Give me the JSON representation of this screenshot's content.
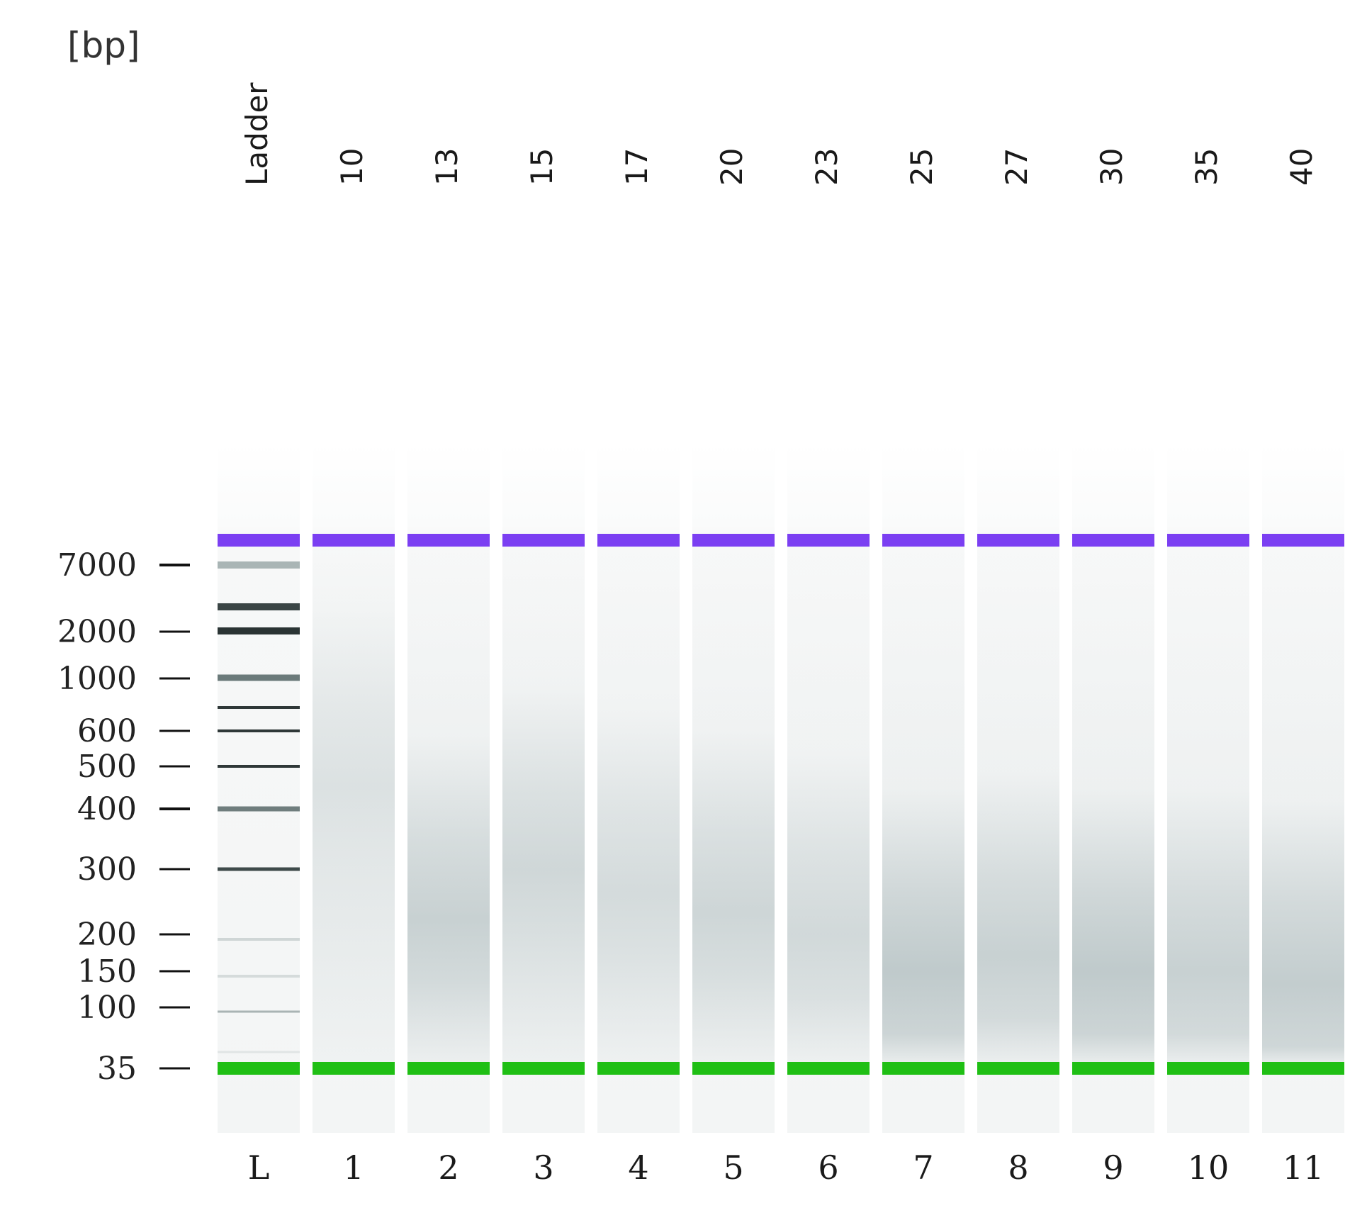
{
  "unit_label": "[bp]",
  "ladder_header": "Ladder",
  "marker_colors": {
    "upper": "#7b3ff2",
    "lower": "#1fbf14"
  },
  "size_markers": [
    "7000",
    "2000",
    "1000",
    "600",
    "500",
    "400",
    "300",
    "200",
    "150",
    "100",
    "35"
  ],
  "lanes": [
    {
      "number": "L",
      "header": "Ladder",
      "type": "ladder",
      "smear_peak_bp": null,
      "smear_intensity": 0
    },
    {
      "number": "1",
      "header": "10",
      "type": "sample",
      "smear_peak_bp": 450,
      "smear_intensity": 0.22
    },
    {
      "number": "2",
      "header": "13",
      "type": "sample",
      "smear_peak_bp": 220,
      "smear_intensity": 0.38
    },
    {
      "number": "3",
      "header": "15",
      "type": "sample",
      "smear_peak_bp": 300,
      "smear_intensity": 0.32
    },
    {
      "number": "4",
      "header": "17",
      "type": "sample",
      "smear_peak_bp": 260,
      "smear_intensity": 0.28
    },
    {
      "number": "5",
      "header": "20",
      "type": "sample",
      "smear_peak_bp": 230,
      "smear_intensity": 0.33
    },
    {
      "number": "6",
      "header": "23",
      "type": "sample",
      "smear_peak_bp": 200,
      "smear_intensity": 0.3
    },
    {
      "number": "7",
      "header": "25",
      "type": "sample",
      "smear_peak_bp": 150,
      "smear_intensity": 0.45
    },
    {
      "number": "8",
      "header": "27",
      "type": "sample",
      "smear_peak_bp": 170,
      "smear_intensity": 0.38
    },
    {
      "number": "9",
      "header": "30",
      "type": "sample",
      "smear_peak_bp": 150,
      "smear_intensity": 0.45
    },
    {
      "number": "10",
      "header": "35",
      "type": "sample",
      "smear_peak_bp": 150,
      "smear_intensity": 0.38
    },
    {
      "number": "11",
      "header": "40",
      "type": "sample",
      "smear_peak_bp": 130,
      "smear_intensity": 0.42
    }
  ]
}
